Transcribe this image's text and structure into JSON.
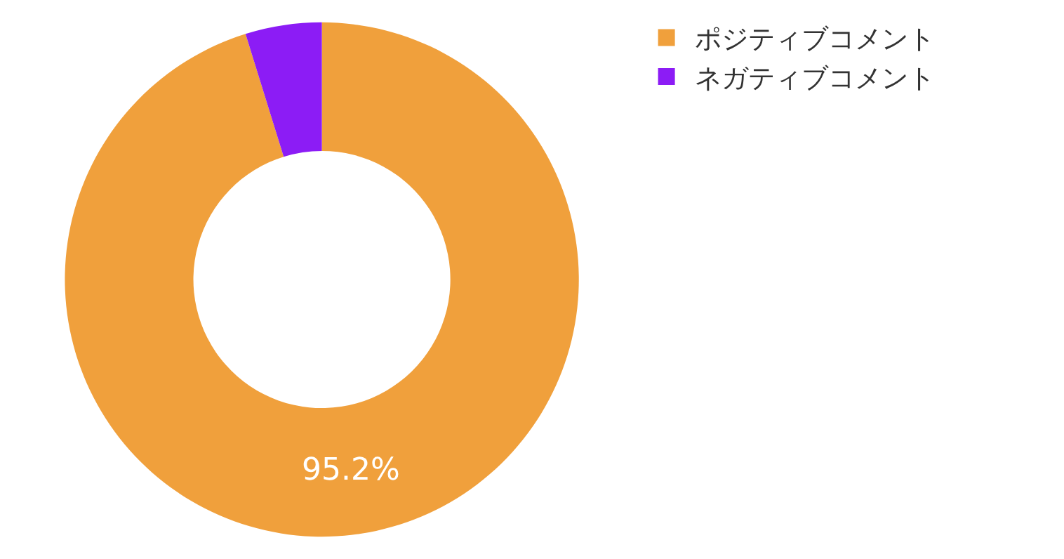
{
  "chart_data": {
    "type": "donut",
    "categories": [
      "ポジティブコメント",
      "ネガティブコメント"
    ],
    "values": [
      95.2,
      4.8
    ],
    "value_labels": [
      "95.2%",
      null
    ],
    "colors": [
      "#f0a03c",
      "#8c1cf5"
    ],
    "legend": "top right"
  }
}
